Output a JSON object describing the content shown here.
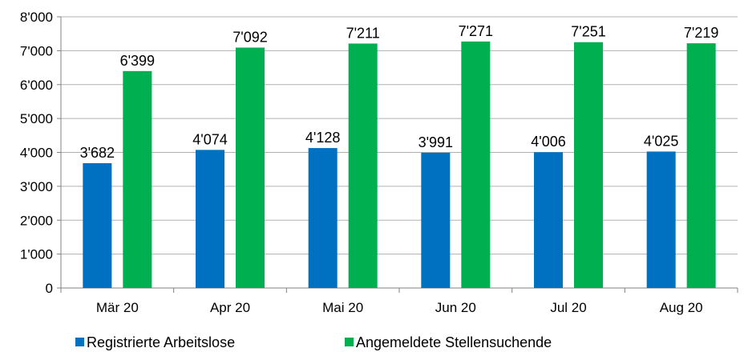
{
  "chart_data": {
    "type": "bar",
    "categories": [
      "Mär 20",
      "Apr 20",
      "Mai 20",
      "Jun 20",
      "Jul 20",
      "Aug 20"
    ],
    "series": [
      {
        "name": "Registrierte Arbeitslose",
        "values": [
          3682,
          4074,
          4128,
          3991,
          4006,
          4025
        ],
        "labels": [
          "3'682",
          "4'074",
          "4'128",
          "3'991",
          "4'006",
          "4'025"
        ],
        "color": "#0070C0"
      },
      {
        "name": "Angemeldete Stellensuchende",
        "values": [
          6399,
          7092,
          7211,
          7271,
          7251,
          7219
        ],
        "labels": [
          "6'399",
          "7'092",
          "7'211",
          "7'271",
          "7'251",
          "7'219"
        ],
        "color": "#00B050"
      }
    ],
    "yticks": [
      0,
      1000,
      2000,
      3000,
      4000,
      5000,
      6000,
      7000,
      8000
    ],
    "ytick_labels": [
      "0",
      "1'000",
      "2'000",
      "3'000",
      "4'000",
      "5'000",
      "6'000",
      "7'000",
      "8'000"
    ],
    "ylim": [
      0,
      8000
    ],
    "grid": true,
    "legend_position": "bottom-left",
    "gridline_color": "#b0b0b0"
  }
}
